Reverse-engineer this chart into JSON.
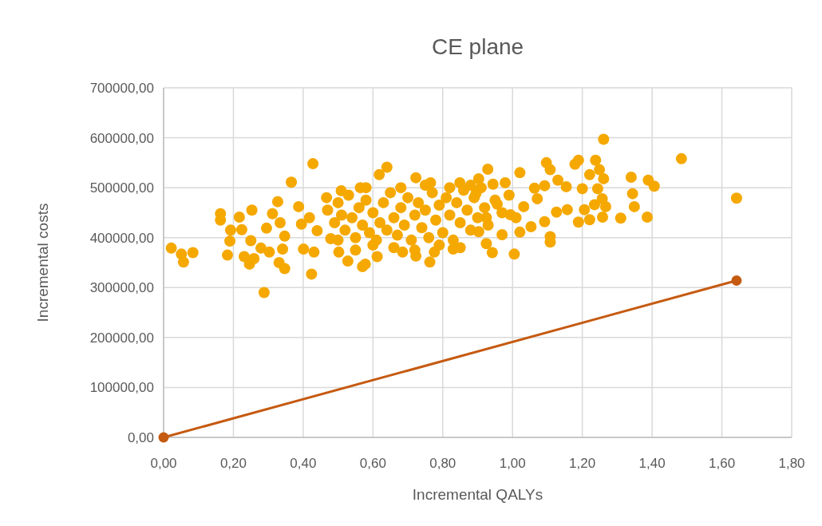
{
  "chart_data": {
    "type": "scatter",
    "title": "CE plane",
    "xlabel": "Incremental QALYs",
    "ylabel": "Incremental costs",
    "xlim": [
      0,
      1.8
    ],
    "ylim": [
      0,
      700000
    ],
    "xticks": [
      {
        "value": 0,
        "label": "0,00"
      },
      {
        "value": 0.2,
        "label": "0,20"
      },
      {
        "value": 0.4,
        "label": "0,40"
      },
      {
        "value": 0.6,
        "label": "0,60"
      },
      {
        "value": 0.8,
        "label": "0,80"
      },
      {
        "value": 1.0,
        "label": "1,00"
      },
      {
        "value": 1.2,
        "label": "1,20"
      },
      {
        "value": 1.4,
        "label": "1,40"
      },
      {
        "value": 1.6,
        "label": "1,60"
      },
      {
        "value": 1.8,
        "label": "1,80"
      }
    ],
    "yticks": [
      {
        "value": 0,
        "label": "0,00"
      },
      {
        "value": 100000,
        "label": "100000,00"
      },
      {
        "value": 200000,
        "label": "200000,00"
      },
      {
        "value": 300000,
        "label": "300000,00"
      },
      {
        "value": 400000,
        "label": "400000,00"
      },
      {
        "value": 500000,
        "label": "500000,00"
      },
      {
        "value": 600000,
        "label": "600000,00"
      },
      {
        "value": 700000,
        "label": "700000,00"
      }
    ],
    "grid": true,
    "series": [
      {
        "color": "#f5a800",
        "marker": "circle",
        "x": [
          0.022,
          0.051,
          0.057,
          0.084,
          0.163,
          0.163,
          0.183,
          0.19,
          0.192,
          0.217,
          0.224,
          0.231,
          0.246,
          0.253,
          0.25,
          0.259,
          0.288,
          0.279,
          0.295,
          0.303,
          0.312,
          0.327,
          0.334,
          0.331,
          0.347,
          0.347,
          0.341,
          0.366,
          0.387,
          0.395,
          0.401,
          0.418,
          0.428,
          0.424,
          0.431,
          0.44,
          0.467,
          0.479,
          0.502,
          0.509,
          0.528,
          0.564,
          0.57,
          0.578,
          0.618,
          0.64,
          0.612,
          0.685,
          0.723,
          0.723,
          0.765,
          0.763,
          0.776,
          0.83,
          0.849,
          1.261,
          1.484,
          1.642,
          0.929,
          1.021,
          1.097,
          1.108,
          1.189,
          1.179,
          1.238,
          1.249,
          1.221,
          1.261,
          1.244,
          1.2,
          1.34,
          1.389,
          1.406,
          1.344,
          1.349,
          1.31,
          1.386,
          1.257,
          1.267,
          1.258,
          1.221,
          1.189,
          1.235,
          1.108,
          1.108,
          1.005,
          0.942,
          0.925,
          0.97,
          1.021,
          1.053,
          1.092,
          1.13,
          1.154,
          1.126,
          1.157,
          1.206,
          0.944,
          0.979,
          1.063,
          1.092,
          1.032,
          0.994,
          0.956,
          0.925,
          0.895,
          0.903,
          1.071,
          0.903,
          0.47,
          0.49,
          0.5,
          0.51,
          0.52,
          0.53,
          0.54,
          0.55,
          0.56,
          0.57,
          0.58,
          0.59,
          0.6,
          0.61,
          0.62,
          0.63,
          0.64,
          0.65,
          0.66,
          0.67,
          0.68,
          0.69,
          0.7,
          0.71,
          0.72,
          0.73,
          0.74,
          0.75,
          0.76,
          0.77,
          0.78,
          0.79,
          0.8,
          0.81,
          0.82,
          0.83,
          0.84,
          0.85,
          0.86,
          0.87,
          0.88,
          0.89,
          0.9,
          0.91,
          0.92,
          0.93,
          0.95,
          0.97,
          0.99,
          1.01,
          0.5,
          0.55,
          0.6,
          0.66,
          0.72,
          0.79,
          0.85,
          0.58,
          0.68,
          0.75,
          0.82,
          0.88
        ],
        "values": [
          379000,
          367000,
          351000,
          370000,
          448000,
          435000,
          365000,
          393000,
          415000,
          441000,
          416000,
          362000,
          347000,
          455000,
          394000,
          358000,
          290000,
          379000,
          419000,
          371000,
          448000,
          472000,
          430000,
          350000,
          338000,
          403000,
          377000,
          511000,
          462000,
          427000,
          377000,
          440000,
          548000,
          327000,
          371000,
          414000,
          480000,
          398000,
          371000,
          494000,
          353000,
          500000,
          342000,
          347000,
          526000,
          541000,
          362000,
          371000,
          520000,
          363000,
          510000,
          351000,
          371000,
          377000,
          510000,
          597000,
          558000,
          479000,
          537000,
          530000,
          550000,
          536000,
          555000,
          547000,
          555000,
          536000,
          526000,
          518000,
          498000,
          498000,
          521000,
          515000,
          503000,
          488000,
          462000,
          439000,
          441000,
          478000,
          462000,
          441000,
          436000,
          431000,
          466000,
          402000,
          391000,
          367000,
          370000,
          388000,
          406000,
          411000,
          422000,
          432000,
          515000,
          502000,
          451000,
          456000,
          456000,
          507000,
          510000,
          499000,
          504000,
          462000,
          446000,
          467000,
          440000,
          488000,
          518000,
          478000,
          412000,
          455000,
          430000,
          470000,
          445000,
          415000,
          485000,
          440000,
          400000,
          460000,
          425000,
          475000,
          410000,
          450000,
          395000,
          430000,
          470000,
          415000,
          490000,
          440000,
          405000,
          460000,
          425000,
          480000,
          395000,
          445000,
          470000,
          420000,
          455000,
          400000,
          490000,
          435000,
          465000,
          410000,
          480000,
          445000,
          395000,
          470000,
          430000,
          495000,
          455000,
          415000,
          480000,
          440000,
          500000,
          460000,
          425000,
          475000,
          450000,
          485000,
          440000,
          395000,
          375000,
          385000,
          380000,
          375000,
          385000,
          380000,
          500000,
          500000,
          505000,
          500000,
          505000
        ]
      },
      {
        "type": "line",
        "color": "#c55a11",
        "marker": "circle",
        "line_style": "solid",
        "x": [
          0,
          1.642
        ],
        "values": [
          0,
          314000
        ]
      }
    ]
  }
}
